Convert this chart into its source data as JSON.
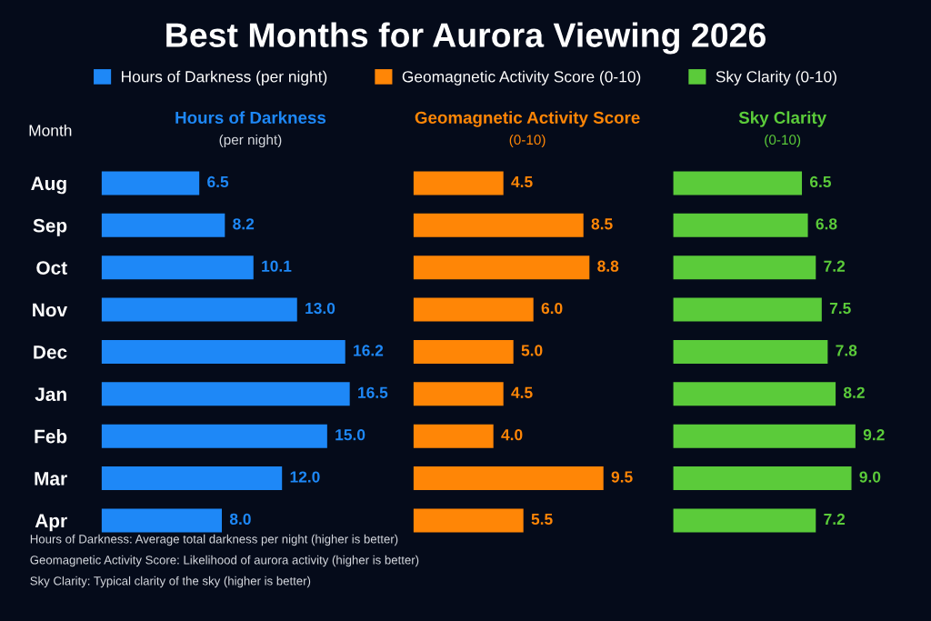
{
  "chart_data": [
    {
      "type": "bar",
      "orientation": "horizontal",
      "title": "Best Months for Aurora Viewing 2026",
      "xlabel": "Hours of Darkness\n(per night)",
      "ylabel": "Month",
      "categories": [
        "Aug",
        "Sep",
        "Oct",
        "Nov",
        "Dec",
        "Jan",
        "Feb",
        "Mar",
        "Apr"
      ],
      "series": [
        {
          "name": "Hours of Darkness (per night)",
          "color": "#1e88f7",
          "values": [
            6.5,
            8.2,
            10.1,
            13.0,
            16.2,
            16.5,
            15.0,
            12.0,
            8.0
          ],
          "value_labels": [
            "6.5",
            "8.2",
            "10.1",
            "13.0",
            "16.2",
            "16.5",
            "15.0",
            "12.0",
            "8.0"
          ]
        }
      ],
      "legend": "top",
      "tick_labels": "y",
      "annotations": [
        "Hours of Darkness: Average total darkness per night (higher is better)",
        "Geomagnetic Activity Score: Likelihood of aurora activity (higher is better)",
        "Sky Clarity: Typical clarity of the sky (higher is better)"
      ]
    },
    {
      "type": "bar",
      "orientation": "horizontal",
      "xlabel": "Geomagnetic Activity Score\n(0-10)",
      "categories": [
        null,
        null,
        null,
        null,
        null,
        null,
        null,
        null,
        null
      ],
      "series": [
        {
          "name": "Geomagnetic Activity Score (0-10)",
          "color": "#ff8606",
          "values": [
            4.5,
            8.5,
            8.8,
            6.0,
            5.0,
            4.5,
            4.0,
            9.5,
            5.5
          ],
          "value_labels": [
            "4.5",
            "8.5",
            "8.8",
            "6.0",
            "5.0",
            "4.5",
            "4.0",
            "9.5",
            "5.5"
          ]
        }
      ],
      "legend": "top"
    },
    {
      "type": "bar",
      "orientation": "horizontal",
      "xlabel": "Sky Clarity\n(0-10)",
      "categories": [
        null,
        null,
        null,
        null,
        null,
        null,
        null,
        null,
        null
      ],
      "series": [
        {
          "name": "Sky Clarity (0-10)",
          "color": "#5bcb3a",
          "values": [
            6.5,
            6.8,
            7.2,
            7.5,
            7.8,
            8.2,
            9.2,
            9.0,
            7.2
          ],
          "value_labels": [
            "6.5",
            "6.8",
            "7.2",
            "7.5",
            "7.8",
            "8.2",
            "9.2",
            "9.0",
            "7.2"
          ]
        }
      ],
      "legend": "top"
    }
  ]
}
